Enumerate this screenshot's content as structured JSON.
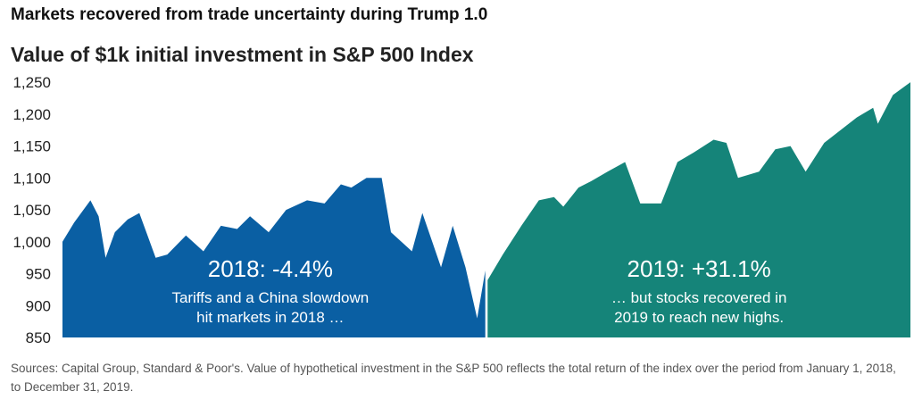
{
  "headline": "Markets recovered from trade uncertainty during Trump 1.0",
  "footnote": "Sources: Capital Group, Standard & Poor's. Value of hypothetical investment in the S&P 500 reflects the total return of the index over the period from January 1, 2018, to December 31, 2019.",
  "colors": {
    "series_2018": "#0a5fa3",
    "series_2019": "#158479"
  },
  "chart_data": {
    "type": "area",
    "title": "Value of $1k initial investment in S&P 500 Index",
    "xlabel": "",
    "ylabel": "",
    "ylim": [
      850,
      1260
    ],
    "yticks": [
      850,
      900,
      950,
      1000,
      1050,
      1100,
      1150,
      1200,
      1250
    ],
    "ytick_labels": [
      "850",
      "900",
      "950",
      "1,000",
      "1,050",
      "1,100",
      "1,150",
      "1,200",
      "1,250"
    ],
    "grid": false,
    "series": [
      {
        "label": "2018: -4.4%",
        "annotation": [
          "Tariffs and a China slowdown",
          "hit markets in 2018 …"
        ],
        "x": [
          "2018-01-02",
          "2018-01-12",
          "2018-01-26",
          "2018-02-02",
          "2018-02-08",
          "2018-02-16",
          "2018-02-27",
          "2018-03-09",
          "2018-03-23",
          "2018-04-02",
          "2018-04-18",
          "2018-05-03",
          "2018-05-18",
          "2018-06-01",
          "2018-06-12",
          "2018-06-28",
          "2018-07-13",
          "2018-07-31",
          "2018-08-15",
          "2018-08-29",
          "2018-09-07",
          "2018-09-20",
          "2018-10-03",
          "2018-10-11",
          "2018-10-29",
          "2018-11-07",
          "2018-11-23",
          "2018-12-03",
          "2018-12-14",
          "2018-12-24",
          "2018-12-31"
        ],
        "y": [
          1000,
          1030,
          1065,
          1040,
          975,
          1015,
          1035,
          1045,
          975,
          980,
          1010,
          985,
          1025,
          1020,
          1040,
          1015,
          1050,
          1065,
          1060,
          1090,
          1085,
          1100,
          1100,
          1015,
          985,
          1045,
          960,
          1025,
          960,
          880,
          955
        ]
      },
      {
        "label": "2019: +31.1%",
        "annotation": [
          "… but stocks recovered in",
          "2019 to reach new highs."
        ],
        "x": [
          "2019-01-02",
          "2019-01-15",
          "2019-01-31",
          "2019-02-15",
          "2019-02-28",
          "2019-03-08",
          "2019-03-21",
          "2019-04-01",
          "2019-04-15",
          "2019-04-30",
          "2019-05-13",
          "2019-05-31",
          "2019-06-14",
          "2019-06-28",
          "2019-07-15",
          "2019-07-26",
          "2019-08-05",
          "2019-08-23",
          "2019-09-06",
          "2019-09-19",
          "2019-10-02",
          "2019-10-18",
          "2019-11-01",
          "2019-11-15",
          "2019-11-29",
          "2019-12-03",
          "2019-12-16",
          "2019-12-31"
        ],
        "y": [
          940,
          980,
          1025,
          1065,
          1070,
          1055,
          1085,
          1095,
          1110,
          1125,
          1060,
          1060,
          1125,
          1140,
          1160,
          1155,
          1100,
          1110,
          1145,
          1150,
          1110,
          1155,
          1175,
          1195,
          1210,
          1185,
          1230,
          1250
        ]
      }
    ]
  }
}
